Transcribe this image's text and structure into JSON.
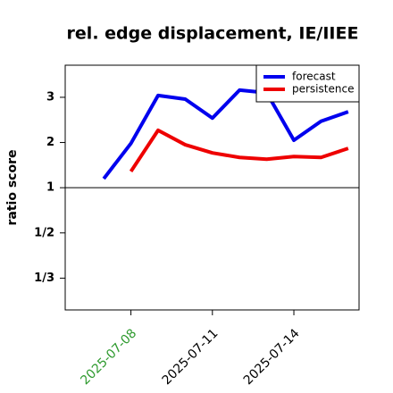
{
  "chart_data": {
    "type": "line",
    "title": "rel. edge displacement, IE/IIEE",
    "y_label": "ratio score",
    "yscale": "ratio",
    "ylim": [
      0.27,
      3.71
    ],
    "yticks": [
      3,
      2,
      1,
      {
        "value": 0.5,
        "label": "1/2"
      },
      {
        "value": 0.3333,
        "label": "1/3"
      }
    ],
    "hline": 1,
    "x": [
      "2025-07-07",
      "2025-07-08",
      "2025-07-09",
      "2025-07-10",
      "2025-07-11",
      "2025-07-12",
      "2025-07-13",
      "2025-07-14",
      "2025-07-15",
      "2025-07-16"
    ],
    "xticks": [
      "2025-07-08",
      "2025-07-11",
      "2025-07-14"
    ],
    "xtick_colors": [
      "#2e9a2e",
      "#000000",
      "#000000"
    ],
    "legend": "upper right",
    "series": [
      {
        "name": "forecast",
        "color": "#0000ee",
        "values": [
          1.2,
          1.98,
          3.04,
          2.96,
          2.54,
          3.16,
          3.1,
          2.05,
          2.47,
          2.68
        ]
      },
      {
        "name": "persistence",
        "color": "#ee0000",
        "values": [
          null,
          1.36,
          2.27,
          1.95,
          1.77,
          1.67,
          1.63,
          1.69,
          1.67,
          1.87
        ]
      }
    ]
  }
}
